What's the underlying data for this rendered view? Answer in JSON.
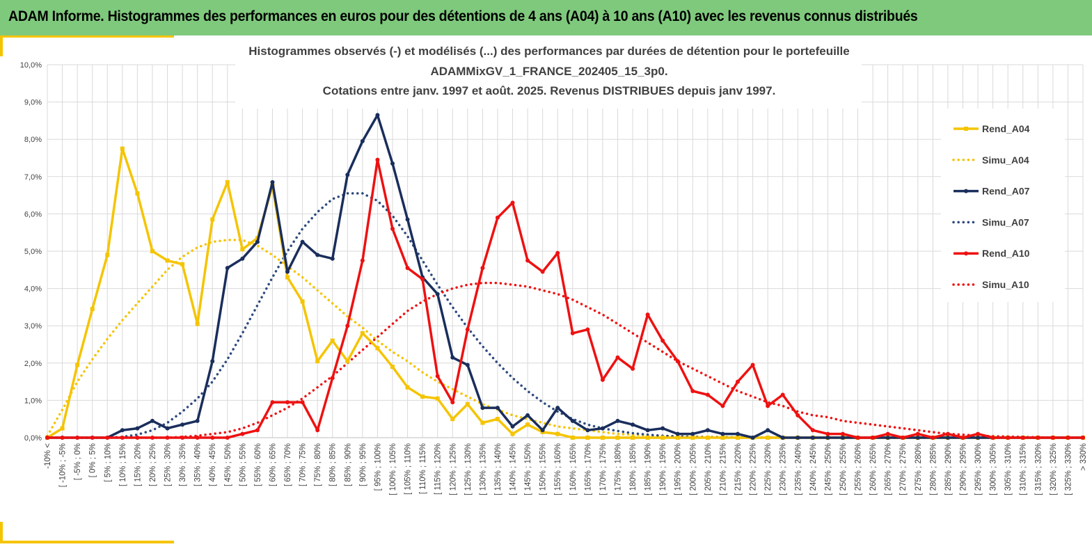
{
  "header": {
    "title": "ADAM Informe. Histogrammes des performances en euros pour des détentions de 4 ans (A04) à 10 ans (A10) avec les revenus connus distribués"
  },
  "chart_data": {
    "type": "line",
    "title_lines": [
      "Histogrammes observés (-) et modélisés (...) des performances par durées de détention pour le portefeuille",
      "ADAMMixGV_1_FRANCE_202405_15_3p0.",
      "Cotations entre janv. 1997 et août. 2025. Revenus DISTRIBUES depuis janv 1997."
    ],
    "ylim": [
      0,
      10
    ],
    "y_ticks": [
      "0,0%",
      "1,0%",
      "2,0%",
      "3,0%",
      "4,0%",
      "5,0%",
      "6,0%",
      "7,0%",
      "8,0%",
      "9,0%",
      "10,0%"
    ],
    "grid": true,
    "legend_position": "right",
    "categories": [
      "-10% <",
      "[ -10% ; -5%",
      "[ -5% ; 0%",
      "[ 0% ; 5%",
      "[ 5% ; 10%",
      "[ 10% ; 15%",
      "[ 15% ; 20%",
      "[ 20% ; 25%",
      "[ 25% ; 30%",
      "[ 30% ; 35%",
      "[ 35% ; 40%",
      "[ 40% ; 45%",
      "[ 45% ; 50%",
      "[ 50% ; 55%",
      "[ 55% ; 60%",
      "[ 60% ; 65%",
      "[ 65% ; 70%",
      "[ 70% ; 75%",
      "[ 75% ; 80%",
      "[ 80% ; 85%",
      "[ 85% ; 90%",
      "[ 90% ; 95%",
      "[ 95% ; 100%",
      "[ 100% ; 105%",
      "[ 105% ; 110%",
      "[ 110% ; 115%",
      "[ 115% ; 120%",
      "[ 120% ; 125%",
      "[ 125% ; 130%",
      "[ 130% ; 135%",
      "[ 135% ; 140%",
      "[ 140% ; 145%",
      "[ 145% ; 150%",
      "[ 150% ; 155%",
      "[ 155% ; 160%",
      "[ 160% ; 165%",
      "[ 165% ; 170%",
      "[ 170% ; 175%",
      "[ 175% ; 180%",
      "[ 180% ; 185%",
      "[ 185% ; 190%",
      "[ 190% ; 195%",
      "[ 195% ; 200%",
      "[ 200% ; 205%",
      "[ 205% ; 210%",
      "[ 210% ; 215%",
      "[ 215% ; 220%",
      "[ 220% ; 225%",
      "[ 225% ; 230%",
      "[ 230% ; 235%",
      "[ 235% ; 240%",
      "[ 240% ; 245%",
      "[ 245% ; 250%",
      "[ 250% ; 255%",
      "[ 255% ; 260%",
      "[ 260% ; 265%",
      "[ 265% ; 270%",
      "[ 270% ; 275%",
      "[ 275% ; 280%",
      "[ 280% ; 285%",
      "[ 285% ; 290%",
      "[ 290% ; 295%",
      "[ 295% ; 300%",
      "[ 300% ; 305%",
      "[ 305% ; 310%",
      "[ 310% ; 315%",
      "[ 315% ; 320%",
      "[ 320% ; 325%",
      "[ 325% ; 330%",
      "> 330%"
    ],
    "series": [
      {
        "name": "Rend_A04",
        "color": "#f5c400",
        "style": "solid",
        "marker": "square",
        "values": [
          0,
          0.25,
          1.95,
          3.45,
          4.9,
          7.75,
          6.55,
          5.0,
          4.75,
          4.65,
          3.05,
          5.85,
          6.85,
          5.05,
          5.35,
          6.75,
          4.3,
          3.65,
          2.05,
          2.6,
          2.05,
          2.8,
          2.4,
          1.9,
          1.35,
          1.1,
          1.05,
          0.5,
          0.9,
          0.4,
          0.5,
          0.1,
          0.35,
          0.15,
          0.1,
          0,
          0,
          0,
          0,
          0,
          0,
          0,
          0,
          0,
          0,
          0,
          0,
          0,
          0,
          0,
          0,
          0,
          0,
          0,
          0,
          0,
          0,
          0,
          0,
          0,
          0,
          0,
          0,
          0,
          0,
          0,
          0,
          0,
          0,
          0
        ]
      },
      {
        "name": "Simu_A04",
        "color": "#f5c400",
        "style": "dotted",
        "marker": "none",
        "values": [
          0.05,
          0.75,
          1.5,
          2.1,
          2.65,
          3.15,
          3.6,
          4.05,
          4.5,
          4.85,
          5.1,
          5.25,
          5.3,
          5.3,
          5.15,
          4.9,
          4.6,
          4.3,
          3.95,
          3.6,
          3.25,
          2.95,
          2.6,
          2.3,
          2.05,
          1.75,
          1.5,
          1.3,
          1.1,
          0.9,
          0.75,
          0.6,
          0.5,
          0.4,
          0.3,
          0.25,
          0.2,
          0.15,
          0.1,
          0.08,
          0.06,
          0.05,
          0.04,
          0.03,
          0.02,
          0.02,
          0.01,
          0.01,
          0.01,
          0,
          0,
          0,
          0,
          0,
          0,
          0,
          0,
          0,
          0,
          0,
          0,
          0,
          0,
          0,
          0,
          0,
          0,
          0,
          0,
          0
        ]
      },
      {
        "name": "Rend_A07",
        "color": "#1a2e5c",
        "style": "solid",
        "marker": "circle",
        "values": [
          0,
          0,
          0,
          0,
          0,
          0.2,
          0.25,
          0.45,
          0.25,
          0.35,
          0.45,
          2.05,
          4.55,
          4.8,
          5.25,
          6.85,
          4.45,
          5.25,
          4.9,
          4.8,
          7.05,
          7.95,
          8.65,
          7.35,
          5.85,
          4.3,
          3.85,
          2.15,
          1.95,
          0.8,
          0.8,
          0.3,
          0.6,
          0.2,
          0.8,
          0.45,
          0.2,
          0.25,
          0.45,
          0.35,
          0.2,
          0.25,
          0.1,
          0.1,
          0.2,
          0.1,
          0.1,
          0,
          0.2,
          0,
          0,
          0,
          0,
          0,
          0,
          0,
          0,
          0,
          0,
          0,
          0,
          0,
          0,
          0,
          0,
          0,
          0,
          0,
          0,
          0
        ]
      },
      {
        "name": "Simu_A07",
        "color": "#2e4a7e",
        "style": "dotted",
        "marker": "none",
        "values": [
          0,
          0,
          0,
          0,
          0,
          0.02,
          0.08,
          0.2,
          0.4,
          0.7,
          1.05,
          1.5,
          2.1,
          2.8,
          3.55,
          4.3,
          5.0,
          5.6,
          6.05,
          6.4,
          6.55,
          6.55,
          6.35,
          5.95,
          5.4,
          4.75,
          4.1,
          3.5,
          2.95,
          2.45,
          2.0,
          1.6,
          1.25,
          0.95,
          0.7,
          0.5,
          0.35,
          0.25,
          0.18,
          0.12,
          0.08,
          0.05,
          0.03,
          0.02,
          0.01,
          0.01,
          0,
          0,
          0,
          0,
          0,
          0,
          0,
          0,
          0,
          0,
          0,
          0,
          0,
          0,
          0,
          0,
          0,
          0,
          0,
          0,
          0,
          0,
          0,
          0
        ]
      },
      {
        "name": "Rend_A10",
        "color": "#ee1111",
        "style": "solid",
        "marker": "circle",
        "values": [
          0,
          0,
          0,
          0,
          0,
          0,
          0,
          0,
          0,
          0,
          0,
          0,
          0,
          0.1,
          0.2,
          0.95,
          0.95,
          0.95,
          0.2,
          1.6,
          3.0,
          4.75,
          7.45,
          5.6,
          4.55,
          4.25,
          1.65,
          0.95,
          2.9,
          4.55,
          5.9,
          6.3,
          4.75,
          4.45,
          4.95,
          2.8,
          2.9,
          1.55,
          2.15,
          1.85,
          3.3,
          2.6,
          2.05,
          1.25,
          1.15,
          0.85,
          1.5,
          1.95,
          0.85,
          1.15,
          0.6,
          0.2,
          0.1,
          0.1,
          0,
          0,
          0.1,
          0,
          0.1,
          0,
          0.1,
          0,
          0.1,
          0,
          0,
          0,
          0,
          0,
          0,
          0
        ]
      },
      {
        "name": "Simu_A10",
        "color": "#ee1111",
        "style": "dotted",
        "marker": "none",
        "values": [
          0,
          0,
          0,
          0,
          0,
          0,
          0,
          0,
          0,
          0.02,
          0.05,
          0.1,
          0.15,
          0.25,
          0.4,
          0.6,
          0.8,
          1.05,
          1.35,
          1.65,
          2.0,
          2.35,
          2.7,
          3.05,
          3.4,
          3.65,
          3.85,
          4.0,
          4.1,
          4.15,
          4.15,
          4.1,
          4.05,
          3.95,
          3.85,
          3.7,
          3.5,
          3.3,
          3.05,
          2.8,
          2.55,
          2.3,
          2.05,
          1.85,
          1.65,
          1.45,
          1.25,
          1.1,
          0.95,
          0.85,
          0.7,
          0.6,
          0.55,
          0.45,
          0.4,
          0.35,
          0.3,
          0.25,
          0.2,
          0.15,
          0.1,
          0.08,
          0.05,
          0.04,
          0.03,
          0.02,
          0.01,
          0,
          0,
          0
        ]
      }
    ]
  }
}
